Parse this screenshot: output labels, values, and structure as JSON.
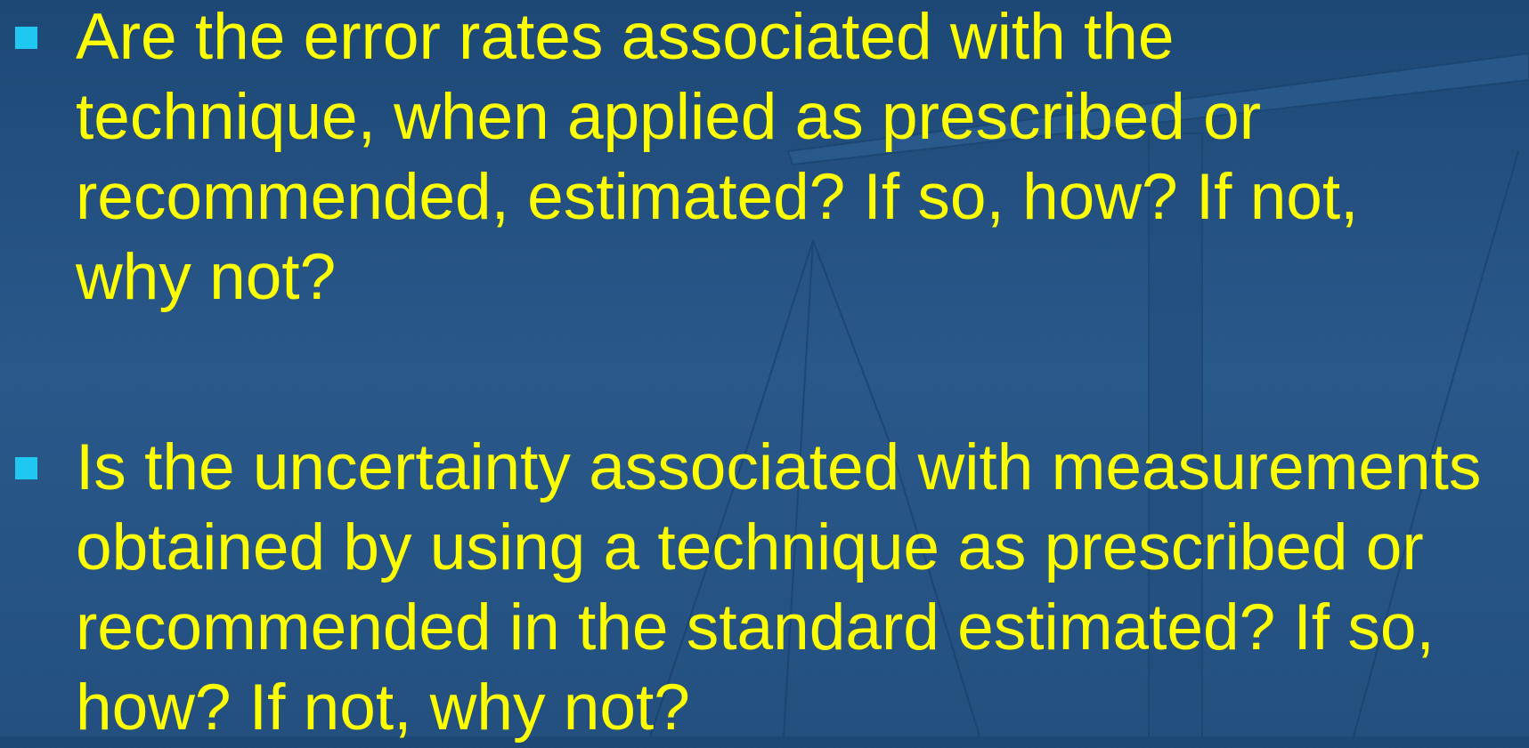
{
  "bullets": [
    {
      "lines": [
        "Are the error rates associated with the",
        "technique, when applied as prescribed or",
        "recommended, estimated? If so, how? If not,",
        "why not?"
      ]
    },
    {
      "lines": [
        "Is the uncertainty associated with measurements",
        "obtained by using a technique as prescribed or",
        "recommended in the standard estimated? If so,",
        "how? If not, why not?"
      ]
    }
  ]
}
